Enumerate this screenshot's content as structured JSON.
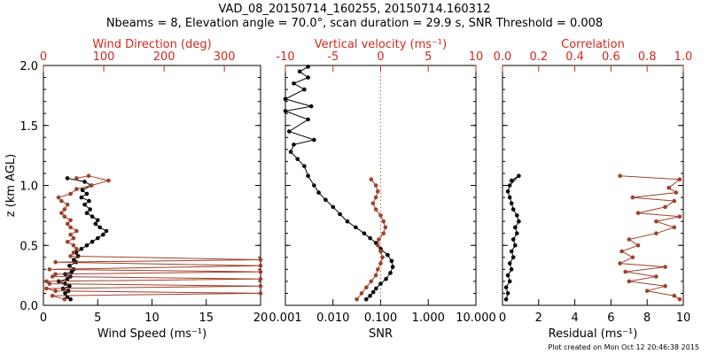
{
  "header": {
    "line1": "VAD_08_20150714_160255, 20150714.160312",
    "line2": "Nbeams = 8, Elevation angle = 70.0°, scan duration = 29.9 s, SNR Threshold = 0.008"
  },
  "footer": {
    "created": "Plot created on Mon Oct 12 20:46:38 2015"
  },
  "colors": {
    "black": "#000000",
    "red": "#cc2a1f",
    "brown": "#a0402a"
  },
  "chart_data": [
    {
      "type": "line",
      "panel": "wind",
      "ylabel": "z (km AGL)",
      "ylim": [
        0,
        2
      ],
      "yticks": [
        "0.0",
        "0.5",
        "1.0",
        "1.5",
        "2.0"
      ],
      "bottom_axis": {
        "label": "Wind Speed (ms⁻¹)",
        "range": [
          0,
          20
        ],
        "ticks": [
          "0",
          "5",
          "10",
          "15",
          "20"
        ]
      },
      "top_axis": {
        "label": "Wind Direction (deg)",
        "range": [
          0,
          360
        ],
        "ticks": [
          "0",
          "100",
          "200",
          "300"
        ]
      },
      "series": [
        {
          "axis": "bottom",
          "color": "black",
          "points": [
            [
              2.5,
              0.05
            ],
            [
              2.2,
              0.07
            ],
            [
              2.0,
              0.1
            ],
            [
              2.3,
              0.12
            ],
            [
              1.8,
              0.14
            ],
            [
              2.4,
              0.16
            ],
            [
              2.0,
              0.18
            ],
            [
              1.4,
              0.2
            ],
            [
              2.2,
              0.22
            ],
            [
              2.5,
              0.24
            ],
            [
              2.0,
              0.26
            ],
            [
              2.6,
              0.28
            ],
            [
              2.8,
              0.3
            ],
            [
              2.4,
              0.33
            ],
            [
              3.0,
              0.36
            ],
            [
              2.8,
              0.38
            ],
            [
              3.2,
              0.41
            ],
            [
              3.0,
              0.44
            ],
            [
              3.5,
              0.47
            ],
            [
              4.0,
              0.5
            ],
            [
              4.5,
              0.53
            ],
            [
              5.0,
              0.56
            ],
            [
              5.5,
              0.59
            ],
            [
              5.8,
              0.62
            ],
            [
              5.2,
              0.65
            ],
            [
              4.8,
              0.68
            ],
            [
              5.0,
              0.71
            ],
            [
              4.5,
              0.74
            ],
            [
              4.0,
              0.77
            ],
            [
              4.3,
              0.8
            ],
            [
              3.8,
              0.84
            ],
            [
              4.2,
              0.87
            ],
            [
              3.5,
              0.9
            ],
            [
              4.0,
              0.93
            ],
            [
              3.6,
              0.96
            ],
            [
              4.4,
              1.0
            ],
            [
              3.8,
              1.03
            ],
            [
              2.2,
              1.06
            ]
          ]
        },
        {
          "axis": "top",
          "color": "brown",
          "points": [
            [
              35,
              0.05
            ],
            [
              15,
              0.08
            ],
            [
              360,
              0.1
            ],
            [
              20,
              0.12
            ],
            [
              5,
              0.14
            ],
            [
              360,
              0.16
            ],
            [
              10,
              0.18
            ],
            [
              5,
              0.2
            ],
            [
              360,
              0.22
            ],
            [
              15,
              0.24
            ],
            [
              20,
              0.26
            ],
            [
              360,
              0.28
            ],
            [
              10,
              0.3
            ],
            [
              360,
              0.33
            ],
            [
              20,
              0.36
            ],
            [
              360,
              0.38
            ],
            [
              45,
              0.41
            ],
            [
              50,
              0.44
            ],
            [
              55,
              0.47
            ],
            [
              50,
              0.5
            ],
            [
              40,
              0.53
            ],
            [
              50,
              0.56
            ],
            [
              45,
              0.59
            ],
            [
              55,
              0.62
            ],
            [
              45,
              0.65
            ],
            [
              40,
              0.68
            ],
            [
              45,
              0.71
            ],
            [
              35,
              0.74
            ],
            [
              30,
              0.77
            ],
            [
              35,
              0.8
            ],
            [
              40,
              0.84
            ],
            [
              30,
              0.87
            ],
            [
              25,
              0.9
            ],
            [
              45,
              0.93
            ],
            [
              55,
              0.97
            ],
            [
              80,
              1.0
            ],
            [
              108,
              1.04
            ],
            [
              75,
              1.08
            ],
            [
              55,
              1.06
            ]
          ]
        }
      ]
    },
    {
      "type": "line",
      "panel": "snr",
      "ylim": [
        0,
        2
      ],
      "bottom_axis": {
        "label": "SNR",
        "range": [
          0.001,
          10
        ],
        "scale": "log",
        "ticks": [
          "0.001",
          "0.010",
          "0.100",
          "1.000",
          "10.000"
        ]
      },
      "top_axis": {
        "label": "Vertical velocity (ms⁻¹)",
        "range": [
          -10,
          10
        ],
        "ticks": [
          "-10",
          "-5",
          "0",
          "5",
          "10"
        ]
      },
      "series": [
        {
          "axis": "bottom",
          "color": "black",
          "points": [
            [
              0.05,
              0.05
            ],
            [
              0.06,
              0.08
            ],
            [
              0.07,
              0.11
            ],
            [
              0.08,
              0.14
            ],
            [
              0.1,
              0.18
            ],
            [
              0.13,
              0.22
            ],
            [
              0.16,
              0.27
            ],
            [
              0.18,
              0.32
            ],
            [
              0.17,
              0.37
            ],
            [
              0.14,
              0.42
            ],
            [
              0.1,
              0.47
            ],
            [
              0.08,
              0.52
            ],
            [
              0.06,
              0.56
            ],
            [
              0.045,
              0.6
            ],
            [
              0.03,
              0.65
            ],
            [
              0.02,
              0.7
            ],
            [
              0.014,
              0.76
            ],
            [
              0.01,
              0.82
            ],
            [
              0.007,
              0.88
            ],
            [
              0.005,
              0.94
            ],
            [
              0.004,
              1.0
            ],
            [
              0.003,
              1.08
            ],
            [
              0.0025,
              1.16
            ],
            [
              0.0018,
              1.22
            ],
            [
              0.0013,
              1.28
            ],
            [
              0.0015,
              1.34
            ],
            [
              0.004,
              1.38
            ],
            [
              0.0012,
              1.45
            ],
            [
              0.003,
              1.55
            ],
            [
              0.001,
              1.62
            ],
            [
              0.0035,
              1.66
            ],
            [
              0.001,
              1.72
            ],
            [
              0.0025,
              1.8
            ],
            [
              0.0015,
              1.85
            ],
            [
              0.003,
              1.9
            ],
            [
              0.002,
              1.95
            ],
            [
              0.003,
              1.99
            ]
          ]
        },
        {
          "axis": "top",
          "color": "brown",
          "points": [
            [
              -2.5,
              0.05
            ],
            [
              -2.0,
              0.1
            ],
            [
              -1.5,
              0.15
            ],
            [
              -1.0,
              0.2
            ],
            [
              -0.5,
              0.25
            ],
            [
              -0.3,
              0.3
            ],
            [
              0.0,
              0.35
            ],
            [
              0.2,
              0.4
            ],
            [
              0.0,
              0.45
            ],
            [
              -0.3,
              0.5
            ],
            [
              -0.2,
              0.55
            ],
            [
              0.3,
              0.6
            ],
            [
              0.5,
              0.65
            ],
            [
              0.3,
              0.7
            ],
            [
              0.0,
              0.75
            ],
            [
              -0.5,
              0.8
            ],
            [
              -0.8,
              0.85
            ],
            [
              -0.5,
              0.9
            ],
            [
              -0.3,
              0.95
            ],
            [
              -0.5,
              1.0
            ],
            [
              -1.0,
              1.05
            ]
          ]
        }
      ],
      "reference_line": {
        "axis": "top",
        "value": 0,
        "style": "dotted",
        "color": "red"
      }
    },
    {
      "type": "line",
      "panel": "residual",
      "ylim": [
        0,
        2
      ],
      "bottom_axis": {
        "label": "Residual (ms⁻¹)",
        "range": [
          0,
          10
        ],
        "ticks": [
          "0",
          "2",
          "4",
          "6",
          "8",
          "10"
        ]
      },
      "top_axis": {
        "label": "Correlation",
        "range": [
          0,
          1
        ],
        "ticks": [
          "0.0",
          "0.2",
          "0.4",
          "0.6",
          "0.8",
          "1.0"
        ]
      },
      "series": [
        {
          "axis": "bottom",
          "color": "black",
          "points": [
            [
              0.2,
              0.05
            ],
            [
              0.3,
              0.1
            ],
            [
              0.2,
              0.15
            ],
            [
              0.4,
              0.2
            ],
            [
              0.3,
              0.25
            ],
            [
              0.5,
              0.3
            ],
            [
              0.4,
              0.35
            ],
            [
              0.6,
              0.4
            ],
            [
              0.5,
              0.45
            ],
            [
              0.7,
              0.5
            ],
            [
              0.6,
              0.55
            ],
            [
              0.8,
              0.6
            ],
            [
              0.7,
              0.65
            ],
            [
              0.9,
              0.7
            ],
            [
              0.8,
              0.75
            ],
            [
              0.6,
              0.8
            ],
            [
              0.5,
              0.85
            ],
            [
              0.4,
              0.9
            ],
            [
              0.3,
              0.95
            ],
            [
              0.4,
              1.0
            ],
            [
              0.9,
              1.08
            ],
            [
              0.5,
              1.04
            ]
          ]
        },
        {
          "axis": "top",
          "color": "brown",
          "points": [
            [
              0.65,
              1.08
            ],
            [
              0.98,
              1.05
            ],
            [
              0.92,
              0.98
            ],
            [
              0.96,
              0.94
            ],
            [
              0.72,
              0.9
            ],
            [
              0.95,
              0.87
            ],
            [
              0.9,
              0.82
            ],
            [
              0.75,
              0.77
            ],
            [
              0.98,
              0.74
            ],
            [
              0.85,
              0.7
            ],
            [
              0.95,
              0.65
            ],
            [
              0.85,
              0.6
            ],
            [
              0.7,
              0.55
            ],
            [
              0.75,
              0.5
            ],
            [
              0.66,
              0.45
            ],
            [
              0.72,
              0.4
            ],
            [
              0.65,
              0.35
            ],
            [
              0.9,
              0.32
            ],
            [
              0.68,
              0.28
            ],
            [
              0.85,
              0.24
            ],
            [
              0.7,
              0.2
            ],
            [
              0.9,
              0.16
            ],
            [
              0.8,
              0.12
            ],
            [
              0.95,
              0.08
            ],
            [
              0.98,
              0.05
            ]
          ]
        }
      ]
    }
  ]
}
